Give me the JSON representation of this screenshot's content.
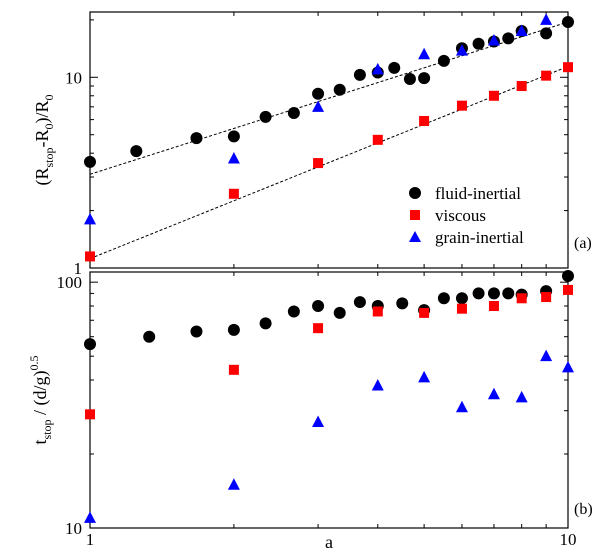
{
  "chart_data": [
    {
      "type": "scatter",
      "panel_label": "(a)",
      "ylabel_main": "(R",
      "ylabel_sub": "stop",
      "ylabel_rest": "-R",
      "ylabel_sub2": "0",
      "ylabel_tail": ")/R",
      "ylabel_sub3": "0",
      "xscale": "log",
      "yscale": "log",
      "xlim": [
        1,
        10
      ],
      "ylim": [
        1,
        22
      ],
      "y_tick_labels": [
        {
          "value": 1,
          "label": "1"
        },
        {
          "value": 10,
          "label": "10"
        }
      ],
      "legend_position": "bottom-right",
      "series": [
        {
          "name": "fluid-inertial",
          "marker": "circle",
          "color": "#000000",
          "x": [
            1,
            1.25,
            1.67,
            2,
            2.33,
            2.67,
            3,
            3.33,
            3.67,
            4,
            4.33,
            4.67,
            5,
            5.5,
            6,
            6.5,
            7,
            7.5,
            8,
            9,
            10
          ],
          "y": [
            3.6,
            4.1,
            4.8,
            4.9,
            6.2,
            6.5,
            8.2,
            8.6,
            10.3,
            10.6,
            11.2,
            9.8,
            9.9,
            12.2,
            14.2,
            15.0,
            15.4,
            16.0,
            17.5,
            17.0,
            19.5
          ]
        },
        {
          "name": "viscous",
          "marker": "square",
          "color": "#ff0000",
          "x": [
            1,
            2,
            3,
            4,
            5,
            6,
            7,
            8,
            9,
            10
          ],
          "y": [
            1.15,
            2.45,
            3.55,
            4.7,
            5.9,
            7.1,
            8.0,
            9.0,
            10.2,
            11.3
          ]
        },
        {
          "name": "grain-inertial",
          "marker": "triangle",
          "color": "#0000ff",
          "x": [
            1,
            2,
            3,
            4,
            5,
            6,
            7,
            8,
            9
          ],
          "y": [
            1.8,
            3.75,
            7.0,
            11.0,
            13.2,
            13.8,
            15.6,
            17.5,
            20.0
          ]
        }
      ],
      "fit_lines": [
        {
          "x": [
            1,
            10
          ],
          "y": [
            3.1,
            19.5
          ]
        },
        {
          "x": [
            1,
            10
          ],
          "y": [
            1.12,
            11.4
          ]
        }
      ]
    },
    {
      "type": "scatter",
      "panel_label": "(b)",
      "xlabel": "a",
      "ylabel_main": "t",
      "ylabel_sub": "stop",
      "ylabel_rest": " / (d/g)",
      "ylabel_sup": "0.5",
      "xscale": "log",
      "yscale": "log",
      "xlim": [
        1,
        10
      ],
      "ylim": [
        10,
        110
      ],
      "x_tick_labels": [
        {
          "value": 1,
          "label": "1"
        },
        {
          "value": 10,
          "label": "10"
        }
      ],
      "y_tick_labels": [
        {
          "value": 10,
          "label": "10"
        },
        {
          "value": 100,
          "label": "100"
        }
      ],
      "series": [
        {
          "name": "fluid-inertial",
          "marker": "circle",
          "color": "#000000",
          "x": [
            1,
            1.33,
            1.67,
            2,
            2.33,
            2.67,
            3,
            3.33,
            3.67,
            4,
            4.5,
            5,
            5.5,
            6,
            6.5,
            7,
            7.5,
            8,
            9,
            10
          ],
          "y": [
            56,
            60,
            63,
            64,
            68,
            76,
            80,
            75,
            83,
            80,
            82,
            77,
            86,
            86,
            90,
            90,
            90,
            89,
            92,
            106
          ]
        },
        {
          "name": "viscous",
          "marker": "square",
          "color": "#ff0000",
          "x": [
            1,
            2,
            3,
            4,
            5,
            6,
            7,
            8,
            9,
            10
          ],
          "y": [
            29,
            44,
            65,
            76,
            75,
            78,
            80,
            86,
            87,
            93
          ]
        },
        {
          "name": "grain-inertial",
          "marker": "triangle",
          "color": "#0000ff",
          "x": [
            1,
            2,
            3,
            4,
            5,
            6,
            7,
            8,
            9,
            10
          ],
          "y": [
            11,
            15,
            27,
            38,
            41,
            31,
            35,
            34,
            50,
            45
          ]
        }
      ]
    }
  ]
}
